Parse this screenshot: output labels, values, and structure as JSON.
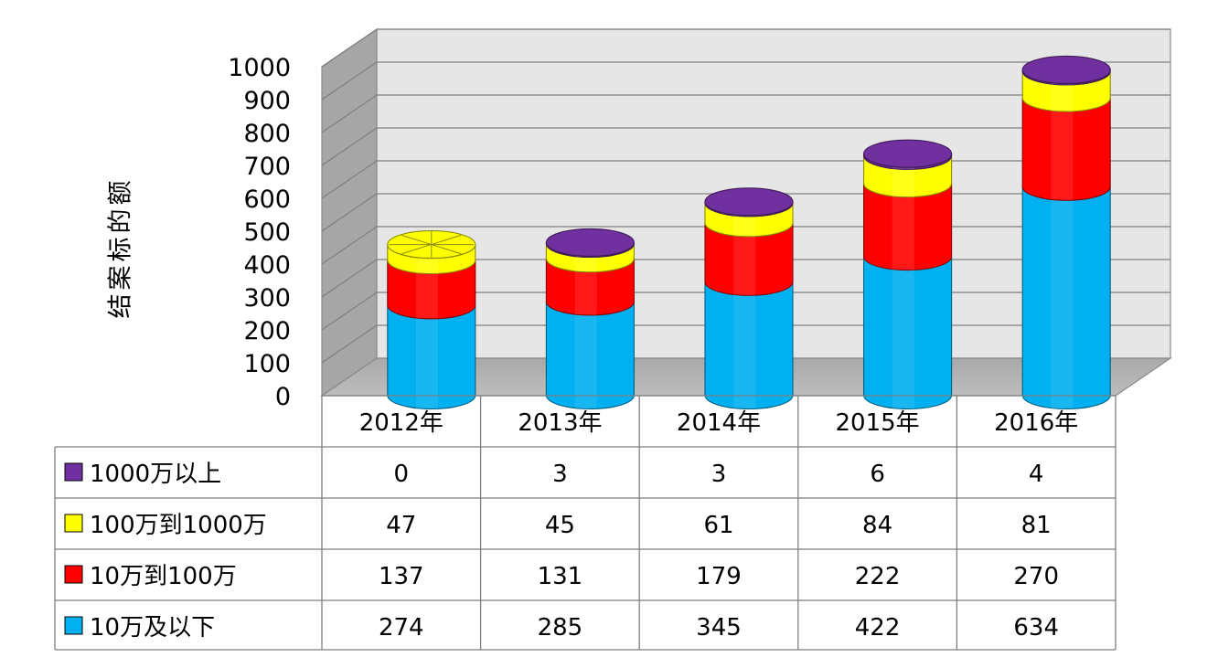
{
  "chart_data": {
    "type": "bar",
    "stacked": true,
    "style": "3d-cylinder",
    "title": "",
    "xlabel": "",
    "ylabel": "结案标的额",
    "ylim": [
      0,
      1000
    ],
    "yticks": [
      0,
      100,
      200,
      300,
      400,
      500,
      600,
      700,
      800,
      900,
      1000
    ],
    "grid": true,
    "legend": "data-table",
    "categories": [
      "2012年",
      "2013年",
      "2014年",
      "2015年",
      "2016年"
    ],
    "series": [
      {
        "name": "10万及以下",
        "color": "#00B0F0",
        "values": [
          274,
          285,
          345,
          422,
          634
        ]
      },
      {
        "name": "10万到100万",
        "color": "#FF0000",
        "values": [
          137,
          131,
          179,
          222,
          270
        ]
      },
      {
        "name": "100万到1000万",
        "color": "#FFFF00",
        "values": [
          47,
          45,
          61,
          84,
          81
        ]
      },
      {
        "name": "1000万以上",
        "color": "#7030A0",
        "values": [
          0,
          3,
          3,
          6,
          4
        ]
      }
    ]
  }
}
